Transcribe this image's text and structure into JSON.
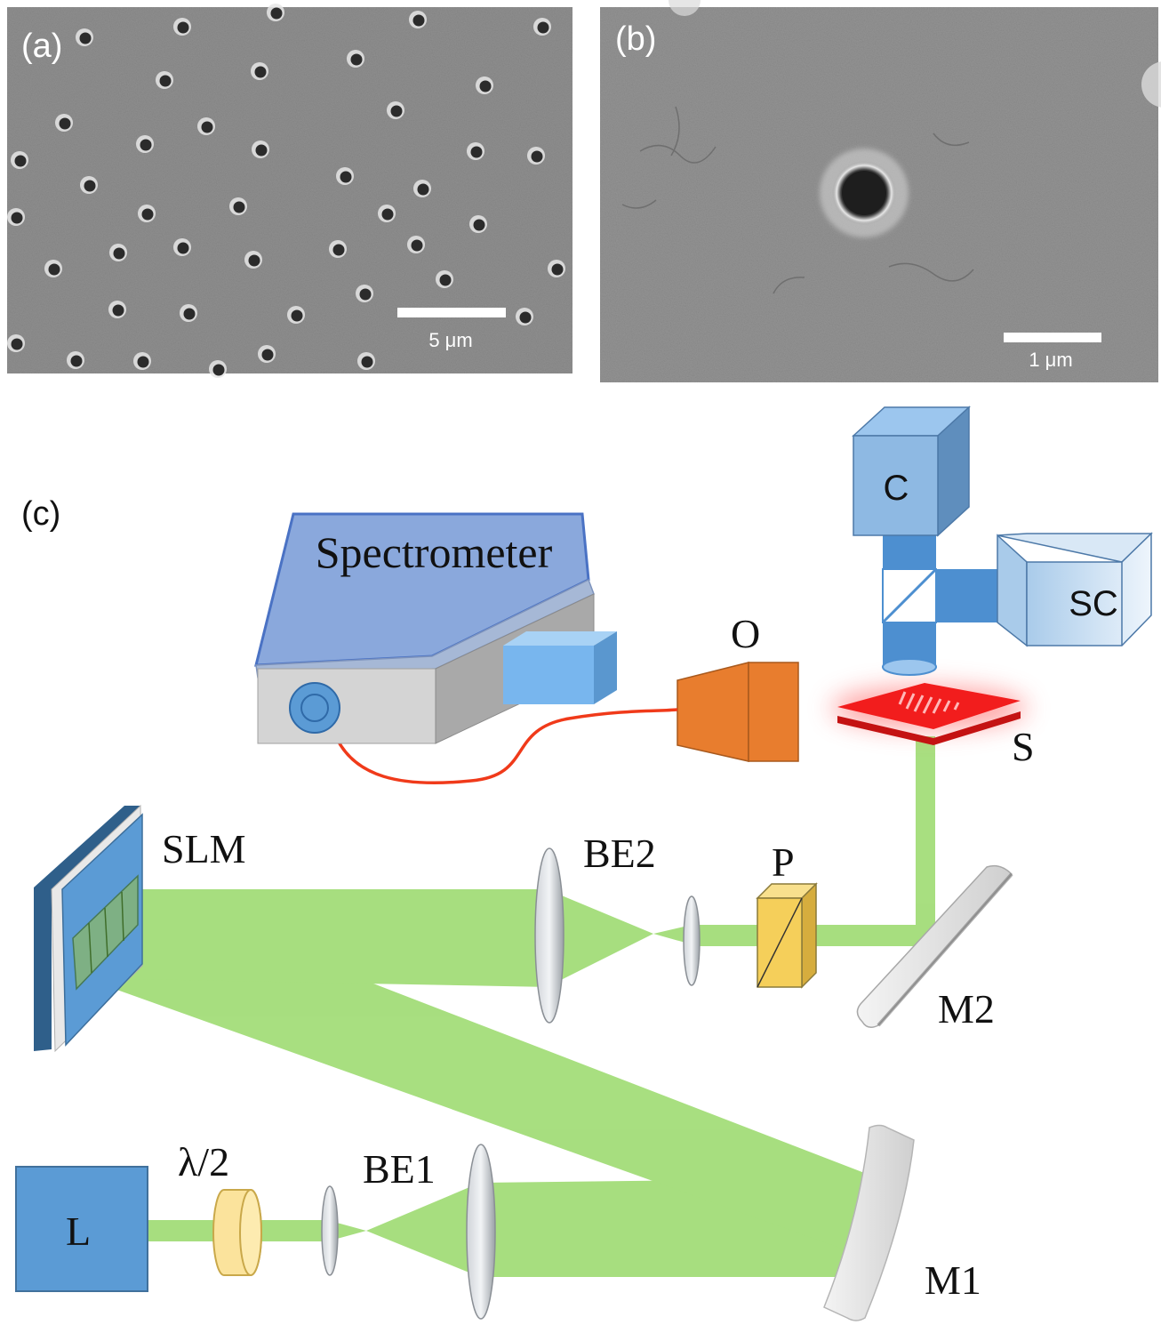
{
  "panels": {
    "a": {
      "label": "(a)",
      "scale_bar": "5 μm"
    },
    "b": {
      "label": "(b)",
      "scale_bar": "1 μm"
    },
    "c": {
      "label": "(c)"
    }
  },
  "components": {
    "spectrometer": "Spectrometer",
    "camera": "C",
    "sc": "SC",
    "objective": "O",
    "sample": "S",
    "slm": "SLM",
    "be2": "BE2",
    "polarizer": "P",
    "m2": "M2",
    "laser": "L",
    "half_wave": "λ/2",
    "be1": "BE1",
    "m1": "M1"
  },
  "colors": {
    "sem_gray": "#8f8f8f",
    "beam_green": "#8fd65c",
    "fiber_red": "#f03a1a",
    "objective_orange": "#e87d2e",
    "sample_red": "#f21d1d",
    "component_blue": "#5b9bd5",
    "polarizer_yellow": "#f5cf5a"
  }
}
